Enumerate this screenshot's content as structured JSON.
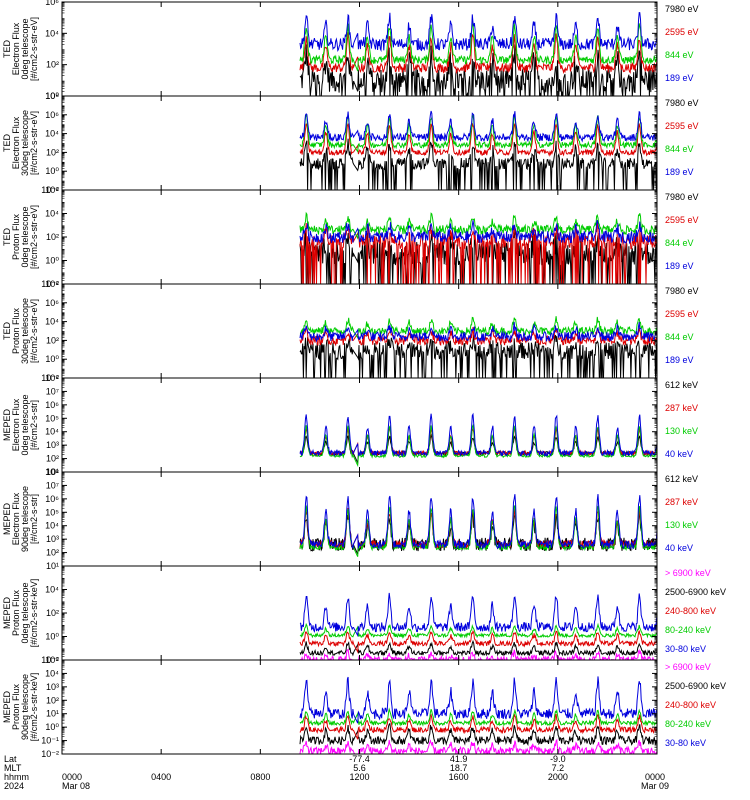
{
  "chart_data": {
    "type": "line",
    "x_domain_hours": [
      0,
      24
    ],
    "data_start_hour": 9.6,
    "x_ticks": [
      {
        "h": 0,
        "hhmm": "0000",
        "sub": "Mar 08",
        "lat": "",
        "mlt": ""
      },
      {
        "h": 4,
        "hhmm": "0400",
        "sub": "",
        "lat": "",
        "mlt": ""
      },
      {
        "h": 8,
        "hhmm": "0800",
        "sub": "",
        "lat": "",
        "mlt": ""
      },
      {
        "h": 12,
        "hhmm": "1200",
        "sub": "",
        "lat": "-77.4",
        "mlt": "5.6"
      },
      {
        "h": 16,
        "hhmm": "1600",
        "sub": "",
        "lat": "41.9",
        "mlt": "18.7"
      },
      {
        "h": 20,
        "hhmm": "2000",
        "sub": "",
        "lat": "-9.0",
        "mlt": "7.2"
      },
      {
        "h": 24,
        "hhmm": "0000",
        "sub": "Mar 09",
        "lat": "",
        "mlt": ""
      }
    ],
    "row_labels": {
      "lat": "Lat",
      "mlt": "MLT",
      "hhmm": "hhmm",
      "year": "2024"
    },
    "panels": [
      {
        "ylabel": [
          "TED",
          "Electron Flux",
          "0deg telescope",
          "[#/cm2-s-str-eV]"
        ],
        "ylog": [
          0,
          6
        ],
        "ticks": [
          {
            "e": 0,
            "t": "10⁰"
          },
          {
            "e": 2,
            "t": "10²"
          },
          {
            "e": 4,
            "t": "10⁴"
          },
          {
            "e": 6,
            "t": "10⁶"
          }
        ],
        "series": [
          {
            "name": "7980 eV",
            "color": "#000000",
            "base": 1.0,
            "amp": 1.7,
            "noise": 0.8
          },
          {
            "name": "2595 eV",
            "color": "#dd0000",
            "base": 1.8,
            "amp": 2.0,
            "noise": 0.3
          },
          {
            "name": "844 eV",
            "color": "#00cc00",
            "base": 2.3,
            "amp": 2.2,
            "noise": 0.25
          },
          {
            "name": "189 eV",
            "color": "#0000dd",
            "base": 3.3,
            "amp": 1.7,
            "noise": 0.4
          }
        ]
      },
      {
        "ylabel": [
          "TED",
          "Electron Flux",
          "30deg telescope",
          "[#/cm2-s-str-eV]"
        ],
        "ylog": [
          -2,
          8
        ],
        "ticks": [
          {
            "e": -2,
            "t": "10⁻²"
          },
          {
            "e": 0,
            "t": "10⁰"
          },
          {
            "e": 2,
            "t": "10²"
          },
          {
            "e": 4,
            "t": "10⁴"
          },
          {
            "e": 6,
            "t": "10⁶"
          },
          {
            "e": 8,
            "t": "10⁸"
          }
        ],
        "series": [
          {
            "name": "7980 eV",
            "color": "#000000",
            "base": 0.8,
            "amp": 2.2,
            "noise": 0.6
          },
          {
            "name": "2595 eV",
            "color": "#dd0000",
            "base": 2.0,
            "amp": 3.0,
            "noise": 0.3
          },
          {
            "name": "844 eV",
            "color": "#00cc00",
            "base": 2.8,
            "amp": 3.0,
            "noise": 0.3
          },
          {
            "name": "189 eV",
            "color": "#0000dd",
            "base": 3.6,
            "amp": 2.5,
            "noise": 0.4
          }
        ]
      },
      {
        "ylabel": [
          "TED",
          "Proton Flux",
          "0deg telescope",
          "[#/cm2-s-str-eV]"
        ],
        "ylog": [
          -2,
          6
        ],
        "ticks": [
          {
            "e": -2,
            "t": "10⁻²"
          },
          {
            "e": 0,
            "t": "10⁰"
          },
          {
            "e": 2,
            "t": "10²"
          },
          {
            "e": 4,
            "t": "10⁴"
          },
          {
            "e": 6,
            "t": "10⁶"
          }
        ],
        "series": [
          {
            "name": "7980 eV",
            "color": "#000000",
            "base": 0.6,
            "amp": 1.2,
            "noise": 1.0
          },
          {
            "name": "2595 eV",
            "color": "#dd0000",
            "base": 1.6,
            "amp": 1.2,
            "noise": 0.6
          },
          {
            "name": "844 eV",
            "color": "#00cc00",
            "base": 2.6,
            "amp": 1.1,
            "noise": 0.4
          },
          {
            "name": "189 eV",
            "color": "#0000dd",
            "base": 2.0,
            "amp": 1.0,
            "noise": 0.5
          }
        ]
      },
      {
        "ylabel": [
          "TED",
          "Proton Flux",
          "30deg telescope",
          "[#/cm2-s-str-eV]"
        ],
        "ylog": [
          -2,
          8
        ],
        "ticks": [
          {
            "e": -2,
            "t": "10⁻²"
          },
          {
            "e": 0,
            "t": "10⁰"
          },
          {
            "e": 2,
            "t": "10²"
          },
          {
            "e": 4,
            "t": "10⁴"
          },
          {
            "e": 6,
            "t": "10⁶"
          },
          {
            "e": 8,
            "t": "10⁸"
          }
        ],
        "series": [
          {
            "name": "7980 eV",
            "color": "#000000",
            "base": 0.9,
            "amp": 1.0,
            "noise": 0.9
          },
          {
            "name": "2595 eV",
            "color": "#dd0000",
            "base": 2.0,
            "amp": 1.0,
            "noise": 0.5
          },
          {
            "name": "844 eV",
            "color": "#00cc00",
            "base": 3.0,
            "amp": 1.2,
            "noise": 0.4
          },
          {
            "name": "189 eV",
            "color": "#0000dd",
            "base": 2.4,
            "amp": 1.1,
            "noise": 0.5
          }
        ]
      },
      {
        "ylabel": [
          "MEPED",
          "Electron Flux",
          "0deg telescope",
          "[#/cm2-s-str]"
        ],
        "ylog": [
          1,
          8
        ],
        "ticks": [
          {
            "e": 1,
            "t": "10¹"
          },
          {
            "e": 2,
            "t": "10²"
          },
          {
            "e": 3,
            "t": "10³"
          },
          {
            "e": 4,
            "t": "10⁴"
          },
          {
            "e": 5,
            "t": "10⁵"
          },
          {
            "e": 6,
            "t": "10⁶"
          },
          {
            "e": 7,
            "t": "10⁷"
          },
          {
            "e": 8,
            "t": "10⁸"
          }
        ],
        "series": [
          {
            "name": "612 keV",
            "color": "#000000",
            "base": 2.4,
            "amp": 1.2,
            "noise": 0.15
          },
          {
            "name": "287 keV",
            "color": "#dd0000",
            "base": 2.4,
            "amp": 1.8,
            "noise": 0.15
          },
          {
            "name": "130 keV",
            "color": "#00cc00",
            "base": 2.2,
            "amp": 2.2,
            "noise": 0.1
          },
          {
            "name": "40 keV",
            "color": "#0000dd",
            "base": 2.4,
            "amp": 2.8,
            "noise": 0.2
          }
        ]
      },
      {
        "ylabel": [
          "MEPED",
          "Electron Flux",
          "90deg telescope",
          "[#/cm2-s-str]"
        ],
        "ylog": [
          1,
          8
        ],
        "ticks": [
          {
            "e": 1,
            "t": "10¹"
          },
          {
            "e": 2,
            "t": "10²"
          },
          {
            "e": 3,
            "t": "10³"
          },
          {
            "e": 4,
            "t": "10⁴"
          },
          {
            "e": 5,
            "t": "10⁵"
          },
          {
            "e": 6,
            "t": "10⁶"
          },
          {
            "e": 7,
            "t": "10⁷"
          },
          {
            "e": 8,
            "t": "10⁸"
          }
        ],
        "series": [
          {
            "name": "612 keV",
            "color": "#000000",
            "base": 2.6,
            "amp": 2.0,
            "noise": 0.5
          },
          {
            "name": "287 keV",
            "color": "#dd0000",
            "base": 2.6,
            "amp": 2.5,
            "noise": 0.3
          },
          {
            "name": "130 keV",
            "color": "#00cc00",
            "base": 2.4,
            "amp": 3.0,
            "noise": 0.2
          },
          {
            "name": "40 keV",
            "color": "#0000dd",
            "base": 2.6,
            "amp": 3.6,
            "noise": 0.3
          }
        ]
      },
      {
        "ylabel": [
          "MEPED",
          "Proton Flux",
          "0deg telescope",
          "[#/cm2-s-str-keV]"
        ],
        "ylog": [
          -2,
          6
        ],
        "ticks": [
          {
            "e": -2,
            "t": "10⁻²"
          },
          {
            "e": 0,
            "t": "10⁰"
          },
          {
            "e": 2,
            "t": "10²"
          },
          {
            "e": 4,
            "t": "10⁴"
          }
        ],
        "series": [
          {
            "name": "> 6900 keV",
            "color": "#ff00ff",
            "base": -2.0,
            "amp": 0.6,
            "noise": 0.3
          },
          {
            "name": "2500-6900 keV",
            "color": "#000000",
            "base": -1.4,
            "amp": 0.8,
            "noise": 0.2
          },
          {
            "name": "240-800 keV",
            "color": "#dd0000",
            "base": -0.6,
            "amp": 1.0,
            "noise": 0.2
          },
          {
            "name": "80-240 keV",
            "color": "#00cc00",
            "base": 0.1,
            "amp": 0.8,
            "noise": 0.15
          },
          {
            "name": "30-80 keV",
            "color": "#0000dd",
            "base": 0.8,
            "amp": 2.6,
            "noise": 0.4
          }
        ]
      },
      {
        "ylabel": [
          "MEPED",
          "Proton Flux",
          "90deg telescope",
          "[#/cm2-s-str-keV]"
        ],
        "ylog": [
          -2,
          5
        ],
        "ticks": [
          {
            "e": -2,
            "t": "10⁻²"
          },
          {
            "e": -1,
            "t": "10⁻¹"
          },
          {
            "e": 0,
            "t": "10⁰"
          },
          {
            "e": 1,
            "t": "10¹"
          },
          {
            "e": 2,
            "t": "10²"
          },
          {
            "e": 3,
            "t": "10³"
          },
          {
            "e": 4,
            "t": "10⁴"
          },
          {
            "e": 5,
            "t": "10⁵"
          }
        ],
        "series": [
          {
            "name": "> 6900 keV",
            "color": "#ff00ff",
            "base": -1.8,
            "amp": 0.6,
            "noise": 0.3
          },
          {
            "name": "2500-6900 keV",
            "color": "#000000",
            "base": -1.0,
            "amp": 1.0,
            "noise": 0.3
          },
          {
            "name": "240-800 keV",
            "color": "#dd0000",
            "base": -0.2,
            "amp": 1.0,
            "noise": 0.2
          },
          {
            "name": "80-240 keV",
            "color": "#00cc00",
            "base": 0.3,
            "amp": 0.9,
            "noise": 0.15
          },
          {
            "name": "30-80 keV",
            "color": "#0000dd",
            "base": 1.0,
            "amp": 2.4,
            "noise": 0.4
          }
        ]
      }
    ]
  }
}
